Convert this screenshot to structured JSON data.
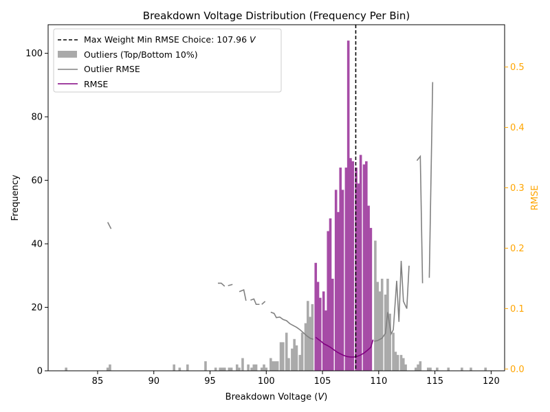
{
  "chart_data": {
    "type": "bar",
    "title": "Breakdown Voltage Distribution (Frequency Per Bin)",
    "xlabel_text": "Breakdown Voltage (",
    "xlabel_unit": "V",
    "xlabel_close": ")",
    "ylabel": "Frequency",
    "y2label": "RMSE",
    "xlim": [
      80.6,
      121.2
    ],
    "ylim": [
      0,
      109
    ],
    "y2lim": [
      -0.003,
      0.57
    ],
    "xticks": [
      85,
      90,
      95,
      100,
      105,
      110,
      115,
      120
    ],
    "yticks": [
      0,
      20,
      40,
      60,
      80,
      100
    ],
    "y2ticks": [
      0.0,
      0.1,
      0.2,
      0.3,
      0.4,
      0.5
    ],
    "grid": false,
    "legend_position": "top-left",
    "colors": {
      "outlier_bars": "#aaaaaa",
      "main_bars": "#a64ca6",
      "rmse_line": "#800080",
      "outlier_rmse_line": "#808080",
      "vline": "#000000",
      "right_axis": "#ffa500"
    },
    "vline": {
      "x": 107.96,
      "label_text": "Max Weight Min RMSE Choice: 107.96",
      "label_unit": "V"
    },
    "legend": [
      {
        "key": "vline",
        "label": "Max Weight Min RMSE Choice: 107.96 V"
      },
      {
        "key": "outliers",
        "label": "Outliers (Top/Bottom 10%)"
      },
      {
        "key": "outlier_rmse",
        "label": "Outlier RMSE"
      },
      {
        "key": "rmse",
        "label": "RMSE"
      }
    ],
    "bin_width": 0.22,
    "series": [
      {
        "name": "Outliers (Top/Bottom 10%)",
        "bins": [
          [
            82.2,
            1
          ],
          [
            85.9,
            1
          ],
          [
            86.1,
            2
          ],
          [
            91.8,
            2
          ],
          [
            92.3,
            1
          ],
          [
            93.0,
            2
          ],
          [
            94.6,
            3
          ],
          [
            95.5,
            1
          ],
          [
            95.9,
            1
          ],
          [
            96.1,
            1
          ],
          [
            96.3,
            1
          ],
          [
            96.7,
            1
          ],
          [
            96.9,
            1
          ],
          [
            97.4,
            2
          ],
          [
            97.6,
            1
          ],
          [
            97.9,
            4
          ],
          [
            98.4,
            2
          ],
          [
            98.7,
            1
          ],
          [
            98.9,
            2
          ],
          [
            99.1,
            2
          ],
          [
            99.6,
            1
          ],
          [
            99.8,
            2
          ],
          [
            100.0,
            1
          ],
          [
            100.4,
            4
          ],
          [
            100.6,
            3
          ],
          [
            100.8,
            3
          ],
          [
            101.0,
            3
          ],
          [
            101.3,
            9
          ],
          [
            101.5,
            9
          ],
          [
            101.8,
            12
          ],
          [
            102.0,
            4
          ],
          [
            102.3,
            7
          ],
          [
            102.5,
            10
          ],
          [
            102.7,
            8
          ],
          [
            103.0,
            5
          ],
          [
            103.2,
            12
          ],
          [
            103.5,
            15
          ],
          [
            103.7,
            22
          ],
          [
            103.9,
            17
          ],
          [
            104.1,
            21
          ],
          [
            109.7,
            41
          ],
          [
            109.9,
            28
          ],
          [
            110.1,
            25
          ],
          [
            110.3,
            29
          ],
          [
            110.6,
            24
          ],
          [
            110.8,
            29
          ],
          [
            111.0,
            18
          ],
          [
            111.3,
            12
          ],
          [
            111.5,
            6
          ],
          [
            111.7,
            5
          ],
          [
            112.0,
            5
          ],
          [
            112.2,
            4
          ],
          [
            112.4,
            2
          ],
          [
            113.3,
            1
          ],
          [
            113.5,
            2
          ],
          [
            113.7,
            3
          ],
          [
            114.4,
            1
          ],
          [
            114.6,
            1
          ],
          [
            115.2,
            1
          ],
          [
            116.2,
            1
          ],
          [
            117.4,
            1
          ],
          [
            118.2,
            1
          ],
          [
            119.5,
            1
          ]
        ]
      },
      {
        "name": "",
        "bins": [
          [
            104.4,
            34
          ],
          [
            104.6,
            28
          ],
          [
            104.8,
            23
          ],
          [
            105.1,
            25
          ],
          [
            105.3,
            19
          ],
          [
            105.5,
            44
          ],
          [
            105.7,
            48
          ],
          [
            105.9,
            29
          ],
          [
            106.2,
            57
          ],
          [
            106.4,
            50
          ],
          [
            106.6,
            64
          ],
          [
            106.8,
            57
          ],
          [
            107.1,
            64
          ],
          [
            107.3,
            104
          ],
          [
            107.5,
            67
          ],
          [
            107.7,
            66
          ],
          [
            108.0,
            64
          ],
          [
            108.2,
            59
          ],
          [
            108.4,
            68
          ],
          [
            108.7,
            65
          ],
          [
            108.9,
            66
          ],
          [
            109.1,
            52
          ],
          [
            109.3,
            45
          ]
        ]
      }
    ],
    "rmse": [
      [
        104.4,
        0.0525
      ],
      [
        104.6,
        0.0495
      ],
      [
        104.9,
        0.0455
      ],
      [
        105.1,
        0.042
      ],
      [
        105.4,
        0.0392
      ],
      [
        105.7,
        0.036
      ],
      [
        106.0,
        0.032
      ],
      [
        106.3,
        0.028
      ],
      [
        106.6,
        0.025
      ],
      [
        106.9,
        0.0225
      ],
      [
        107.2,
        0.0205
      ],
      [
        107.5,
        0.0198
      ],
      [
        107.8,
        0.0198
      ],
      [
        108.1,
        0.021
      ],
      [
        108.4,
        0.0232
      ],
      [
        108.7,
        0.0265
      ],
      [
        109.0,
        0.031
      ],
      [
        109.3,
        0.036
      ],
      [
        109.5,
        0.0485
      ]
    ],
    "outlier_rmse_segments": [
      [
        [
          85.9,
          0.243
        ],
        [
          86.2,
          0.232
        ]
      ],
      [
        [
          95.7,
          0.142
        ],
        [
          96.0,
          0.142
        ],
        [
          96.3,
          0.137
        ]
      ],
      [
        [
          96.6,
          0.138
        ],
        [
          97.0,
          0.14
        ]
      ],
      [
        [
          97.6,
          0.128
        ],
        [
          98.0,
          0.131
        ],
        [
          98.2,
          0.113
        ]
      ],
      [
        [
          98.6,
          0.114
        ],
        [
          98.9,
          0.116
        ],
        [
          99.1,
          0.107
        ],
        [
          99.4,
          0.107
        ]
      ],
      [
        [
          99.6,
          0.107
        ],
        [
          99.9,
          0.112
        ]
      ],
      [
        [
          100.4,
          0.094
        ],
        [
          100.7,
          0.092
        ],
        [
          100.9,
          0.085
        ],
        [
          101.2,
          0.086
        ],
        [
          101.5,
          0.082
        ],
        [
          101.8,
          0.08
        ],
        [
          102.1,
          0.075
        ],
        [
          102.4,
          0.072
        ],
        [
          102.7,
          0.069
        ],
        [
          103.0,
          0.065
        ],
        [
          103.3,
          0.06
        ],
        [
          103.6,
          0.055
        ],
        [
          103.9,
          0.051
        ],
        [
          104.2,
          0.049
        ]
      ],
      [
        [
          109.6,
          0.046
        ],
        [
          109.9,
          0.047
        ],
        [
          110.3,
          0.051
        ],
        [
          110.6,
          0.059
        ],
        [
          110.8,
          0.094
        ],
        [
          111.1,
          0.058
        ],
        [
          111.3,
          0.065
        ],
        [
          111.6,
          0.146
        ],
        [
          111.8,
          0.078
        ],
        [
          112.0,
          0.179
        ],
        [
          112.2,
          0.112
        ],
        [
          112.5,
          0.1
        ],
        [
          112.7,
          0.171
        ]
      ],
      [
        [
          113.4,
          0.345
        ],
        [
          113.7,
          0.352
        ],
        [
          113.9,
          0.142
        ]
      ],
      [
        [
          114.5,
          0.151
        ],
        [
          114.8,
          0.475
        ]
      ]
    ]
  }
}
